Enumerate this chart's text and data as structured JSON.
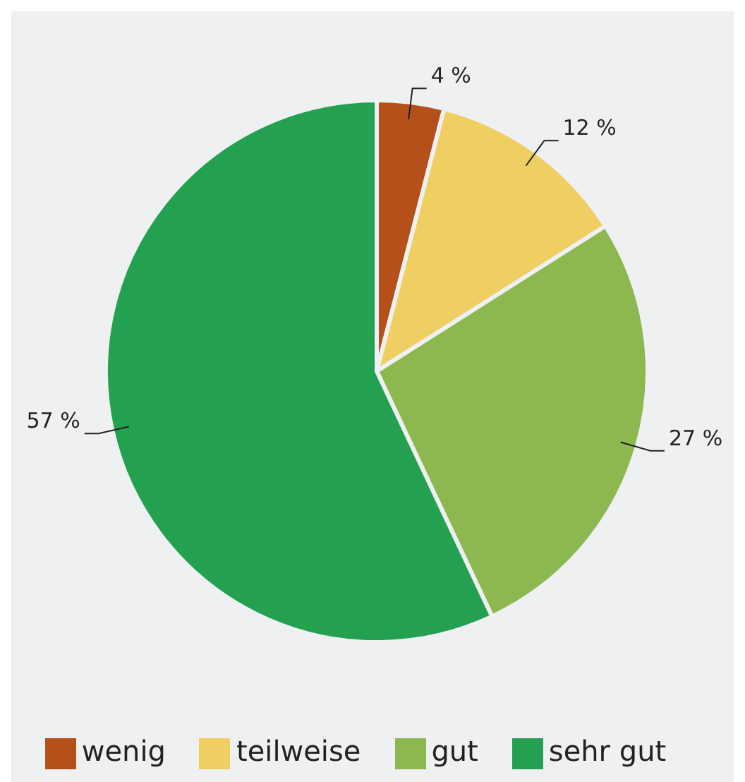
{
  "chart_data": {
    "type": "pie",
    "categories": [
      "wenig",
      "teilweise",
      "gut",
      "sehr gut"
    ],
    "values": [
      4,
      12,
      27,
      57
    ],
    "colors": [
      "#b5501a",
      "#f0cf62",
      "#8db850",
      "#23a050"
    ],
    "value_labels": [
      "4 %",
      "12 %",
      "27 %",
      "57 %"
    ],
    "legend": "bottom"
  }
}
